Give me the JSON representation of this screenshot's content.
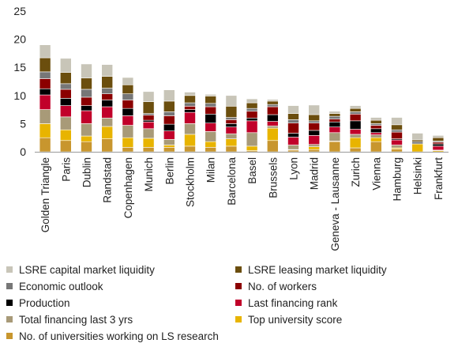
{
  "chart_data": {
    "type": "bar",
    "stacked": true,
    "title": "",
    "xlabel": "",
    "ylabel": "",
    "ylim": [
      0,
      25
    ],
    "yticks": [
      0,
      5,
      10,
      15,
      20,
      25
    ],
    "grid": false,
    "legend_position": "bottom",
    "categories": [
      "Golden Triangle",
      "Paris",
      "Dublin",
      "Randstad",
      "Copenhagen",
      "Munich",
      "Berlin",
      "Stockholm",
      "Milan",
      "Barcelona",
      "Basel",
      "Brussels",
      "Lyon",
      "Madrid",
      "Geneva - Lausanne",
      "Zurich",
      "Vienna",
      "Hamburg",
      "Helsinki",
      "Frankfurt"
    ],
    "series": [
      {
        "name": "No. of universities working on LS research",
        "color": "#c8962e",
        "values": [
          2.5,
          2.0,
          1.8,
          2.3,
          0.8,
          0.8,
          0.8,
          1.0,
          0.8,
          1.0,
          0.2,
          2.0,
          0.3,
          0.4,
          1.8,
          0.7,
          1.8,
          0.5,
          0.0,
          0.0
        ]
      },
      {
        "name": "Top university score",
        "color": "#e8b400",
        "values": [
          2.5,
          1.9,
          1.0,
          2.2,
          1.7,
          1.6,
          0.4,
          2.1,
          1.0,
          1.3,
          0.8,
          2.2,
          0.1,
          0.5,
          0.1,
          1.8,
          0.7,
          0.2,
          1.4,
          0.2
        ]
      },
      {
        "name": "Total financing last 3 yrs",
        "color": "#a89a78",
        "values": [
          2.5,
          2.3,
          2.2,
          1.5,
          2.2,
          1.7,
          1.0,
          1.9,
          1.8,
          0.9,
          2.4,
          0.4,
          0.8,
          0.4,
          1.5,
          0.6,
          0.5,
          0.5,
          0.0,
          0.1
        ]
      },
      {
        "name": "Last financing rank",
        "color": "#c1002a",
        "values": [
          2.6,
          2.0,
          2.3,
          2.0,
          1.7,
          1.2,
          1.5,
          2.0,
          1.5,
          1.2,
          2.1,
          0.8,
          1.4,
          1.6,
          1.0,
          0.9,
          0.4,
          0.9,
          0.0,
          0.7
        ]
      },
      {
        "name": "Production",
        "color": "#000000",
        "values": [
          1.1,
          1.3,
          0.9,
          1.2,
          1.3,
          0.3,
          1.2,
          0.5,
          1.6,
          0.6,
          0.5,
          1.2,
          0.7,
          0.9,
          0.9,
          1.5,
          0.7,
          0.2,
          0.0,
          0.4
        ]
      },
      {
        "name": "No. of workers",
        "color": "#8b0000",
        "values": [
          1.8,
          1.6,
          1.5,
          1.1,
          1.5,
          0.9,
          1.5,
          0.6,
          1.3,
          0.7,
          1.2,
          1.4,
          1.8,
          1.3,
          0.5,
          1.2,
          0.6,
          1.2,
          0.0,
          0.3
        ]
      },
      {
        "name": "Economic outlook",
        "color": "#777777",
        "values": [
          1.2,
          1.0,
          1.4,
          1.0,
          1.1,
          0.3,
          0.7,
          0.6,
          0.6,
          0.4,
          0.5,
          0.4,
          0.6,
          0.4,
          0.5,
          0.4,
          0.3,
          0.4,
          0.4,
          0.2
        ]
      },
      {
        "name": "LSRE leasing market liquidity",
        "color": "#6b4e0e",
        "values": [
          2.5,
          2.0,
          2.0,
          2.1,
          1.6,
          2.1,
          1.9,
          1.3,
          1.3,
          2.0,
          1.0,
          0.6,
          1.1,
          1.1,
          0.5,
          0.6,
          0.6,
          0.9,
          0.3,
          0.6
        ]
      },
      {
        "name": "LSRE capital market liquidity",
        "color": "#c8c5b8",
        "values": [
          2.3,
          2.5,
          2.5,
          2.1,
          1.3,
          1.8,
          2.0,
          0.6,
          0.3,
          1.9,
          0.7,
          0.3,
          1.4,
          1.7,
          0.4,
          0.5,
          0.5,
          1.3,
          1.2,
          0.4
        ]
      }
    ],
    "legend_entries": [
      {
        "label": "LSRE capital market liquidity",
        "color": "#c8c5b8"
      },
      {
        "label": "LSRE leasing market liquidity",
        "color": "#6b4e0e"
      },
      {
        "label": "Economic outlook",
        "color": "#777777"
      },
      {
        "label": "No. of workers",
        "color": "#8b0000"
      },
      {
        "label": "Production",
        "color": "#000000"
      },
      {
        "label": "Last financing rank",
        "color": "#c1002a"
      },
      {
        "label": "Total financing last 3 yrs",
        "color": "#a89a78"
      },
      {
        "label": "Top university score",
        "color": "#e8b400"
      },
      {
        "label": "No. of universities working on LS research",
        "color": "#c8962e"
      }
    ]
  }
}
